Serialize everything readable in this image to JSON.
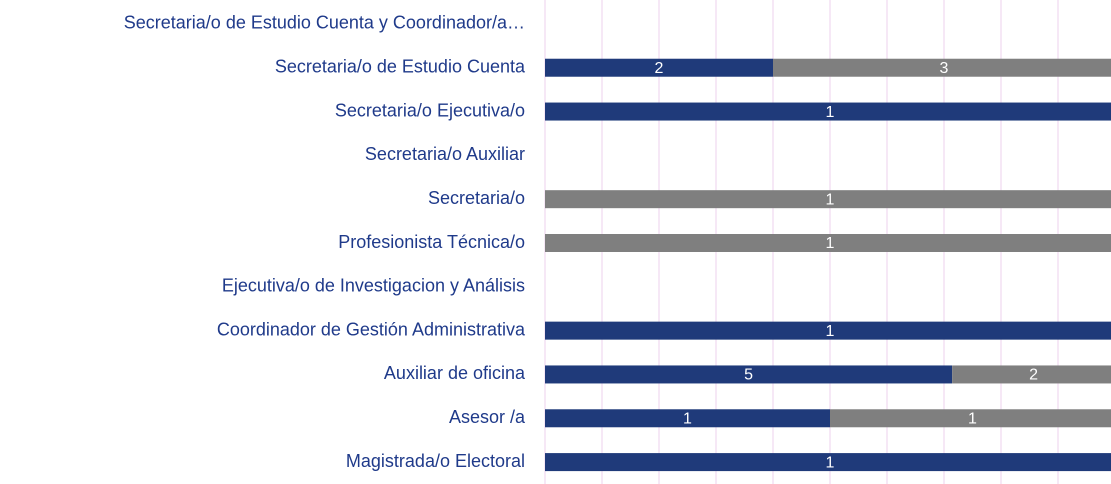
{
  "chart_data": {
    "type": "bar",
    "orientation": "horizontal",
    "stack": "percent",
    "categories": [
      "Secretaria/o de Estudio Cuenta y Coordinador/a…",
      "Secretaria/o de Estudio Cuenta",
      "Secretaria/o Ejecutiva/o",
      "Secretaria/o Auxiliar",
      "Secretaria/o",
      "Profesionista Técnica/o",
      "Ejecutiva/o de Investigacion y Análisis",
      "Coordinador de Gestión Administrativa",
      "Auxiliar de oficina",
      "Asesor /a",
      "Magistrada/o Electoral"
    ],
    "series": [
      {
        "color": "#1f3a7a",
        "values": [
          null,
          2,
          1,
          null,
          0,
          0,
          null,
          1,
          5,
          1,
          1
        ]
      },
      {
        "color": "#7f7f7f",
        "values": [
          null,
          3,
          null,
          null,
          1,
          1,
          null,
          null,
          2,
          1,
          null
        ]
      }
    ],
    "xlim": [
      0,
      100
    ],
    "xticks": [
      0,
      10,
      20,
      30,
      40,
      50,
      60,
      70,
      80,
      90,
      100
    ],
    "grid": true
  }
}
